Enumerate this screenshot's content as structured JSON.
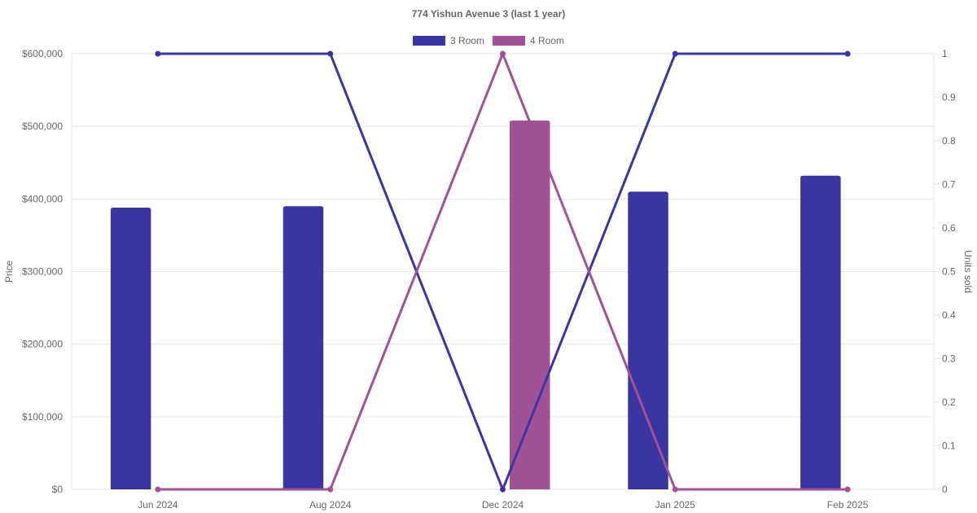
{
  "chart_data": {
    "type": "bar",
    "title": "774 Yishun Avenue 3 (last 1 year)",
    "categories": [
      "Jun 2024",
      "Aug 2024",
      "Dec 2024",
      "Jan 2025",
      "Feb 2025"
    ],
    "ylabel": "Price",
    "y2label": "Units sold",
    "ylim": [
      0,
      600000
    ],
    "y2lim": [
      0,
      1
    ],
    "yticks": [
      "$0",
      "$100,000",
      "$200,000",
      "$300,000",
      "$400,000",
      "$500,000",
      "$600,000"
    ],
    "y2ticks": [
      "0",
      "0.1",
      "0.2",
      "0.3",
      "0.4",
      "0.5",
      "0.6",
      "0.7",
      "0.8",
      "0.9",
      "1"
    ],
    "grid": true,
    "legend_position": "top-center",
    "series": [
      {
        "name": "3 Room",
        "kind": "bar",
        "axis": "price",
        "color": "#3a35a0",
        "values": [
          388000,
          390000,
          null,
          410000,
          432000
        ]
      },
      {
        "name": "4 Room",
        "kind": "bar",
        "axis": "price",
        "color": "#a05296",
        "values": [
          null,
          null,
          508000,
          null,
          null
        ]
      },
      {
        "name": "3 Room",
        "kind": "line",
        "axis": "units",
        "color": "#3a35a0",
        "values": [
          1,
          1,
          0,
          1,
          1
        ]
      },
      {
        "name": "4 Room",
        "kind": "line",
        "axis": "units",
        "color": "#a05296",
        "values": [
          0,
          0,
          1,
          0,
          0
        ]
      }
    ],
    "legend": [
      {
        "label": "3 Room",
        "color": "#3a35a0"
      },
      {
        "label": "4 Room",
        "color": "#a05296"
      }
    ]
  }
}
